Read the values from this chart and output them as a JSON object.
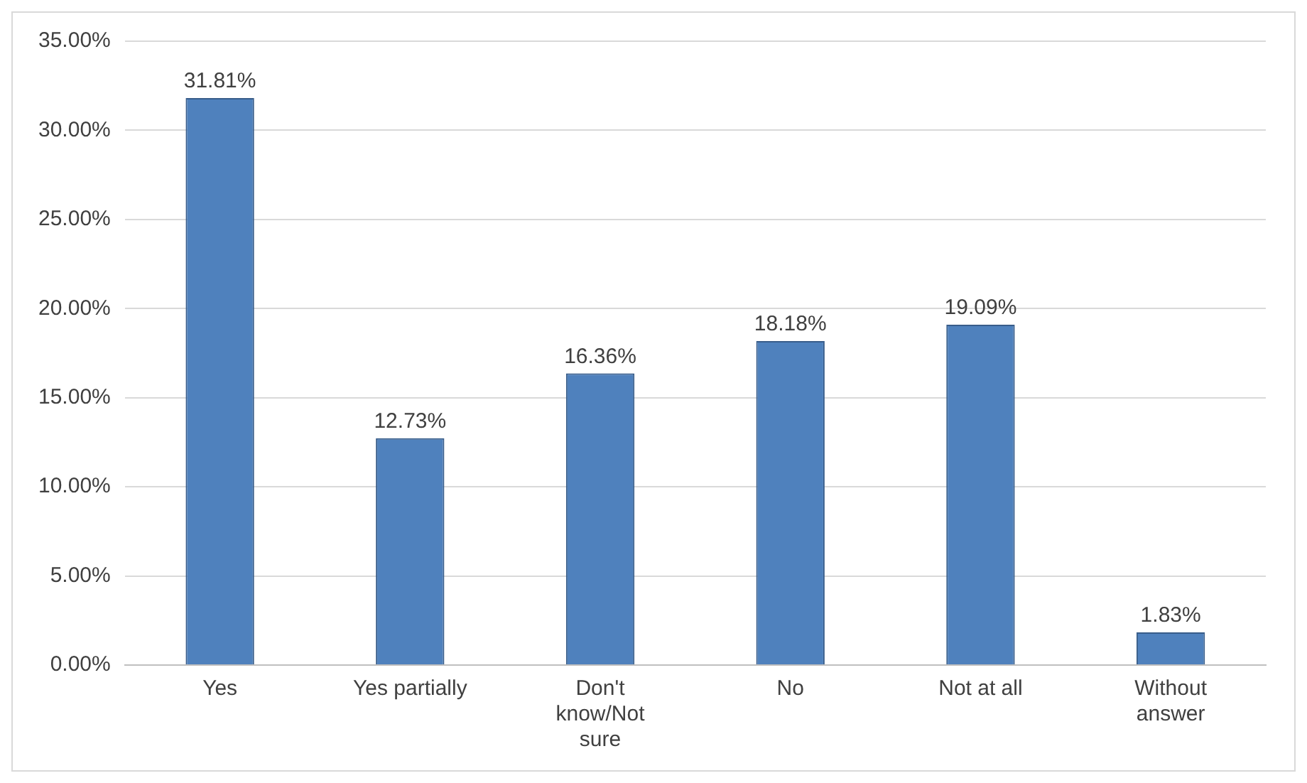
{
  "chart_data": {
    "type": "bar",
    "categories": [
      "Yes",
      "Yes partially",
      "Don't know/Not sure",
      "No",
      "Not at all",
      "Without answer"
    ],
    "values": [
      31.81,
      12.73,
      16.36,
      18.18,
      19.09,
      1.83
    ],
    "value_labels": [
      "31.81%",
      "12.73%",
      "16.36%",
      "18.18%",
      "19.09%",
      "1.83%"
    ],
    "color": "#4f81bd",
    "ylim": [
      0,
      35
    ],
    "yticks": [
      {
        "value": 0,
        "label": "0.00%"
      },
      {
        "value": 5,
        "label": "5.00%"
      },
      {
        "value": 10,
        "label": "10.00%"
      },
      {
        "value": 15,
        "label": "15.00%"
      },
      {
        "value": 20,
        "label": "20.00%"
      },
      {
        "value": 25,
        "label": "25.00%"
      },
      {
        "value": 30,
        "label": "30.00%"
      },
      {
        "value": 35,
        "label": "35.00%"
      }
    ],
    "grid": "y",
    "legend": false
  }
}
